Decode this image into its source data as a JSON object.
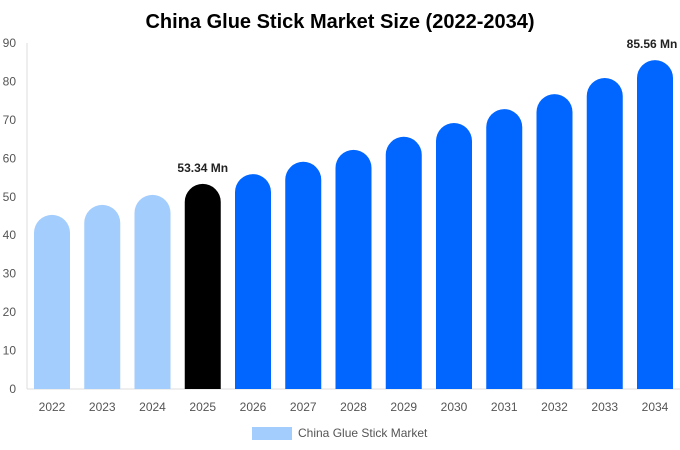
{
  "chart_data": {
    "type": "bar",
    "title": "China Glue Stick Market Size (2022-2034)",
    "categories": [
      "2022",
      "2023",
      "2024",
      "2025",
      "2026",
      "2027",
      "2028",
      "2029",
      "2030",
      "2031",
      "2032",
      "2033",
      "2034"
    ],
    "series": [
      {
        "name": "China Glue Stick Market",
        "values": [
          45.3,
          47.9,
          50.5,
          53.34,
          55.9,
          59.1,
          62.2,
          65.6,
          69.2,
          72.8,
          76.7,
          80.9,
          85.56
        ]
      }
    ],
    "bar_colors": [
      "#a3cdfd",
      "#a3cdfd",
      "#a3cdfd",
      "#000000",
      "#0066ff",
      "#0066ff",
      "#0066ff",
      "#0066ff",
      "#0066ff",
      "#0066ff",
      "#0066ff",
      "#0066ff",
      "#0066ff"
    ],
    "data_labels": [
      {
        "category": "2025",
        "text": "53.34 Mn"
      },
      {
        "category": "2034",
        "text": "85.56 Mn"
      }
    ],
    "yticks": [
      "0",
      "10",
      "20",
      "30",
      "40",
      "50",
      "60",
      "70",
      "80",
      "90"
    ],
    "ylim": [
      0,
      90
    ],
    "xlabel": "",
    "ylabel": "",
    "grid": false,
    "legend_position": "bottom",
    "legend_color": "#a3cdfd"
  }
}
